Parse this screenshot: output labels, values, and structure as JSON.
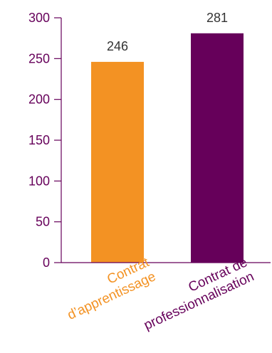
{
  "chart_data": {
    "type": "bar",
    "categories": [
      [
        "Contrat",
        "d’apprentissage"
      ],
      [
        "Contrat de",
        "professionnalisation"
      ]
    ],
    "values": [
      246,
      281
    ],
    "data_labels": [
      "246",
      "281"
    ],
    "ylim": [
      0,
      300
    ],
    "yticks": [
      0,
      50,
      100,
      150,
      200,
      250,
      300
    ],
    "grid": false,
    "legend": "none",
    "colors": {
      "bars": [
        "#f39223",
        "#66005a"
      ],
      "category_labels": [
        "#f39223",
        "#66005a"
      ],
      "axis": "#66005a",
      "tick_text": "#66005a",
      "data_label_text": "#333333"
    }
  }
}
